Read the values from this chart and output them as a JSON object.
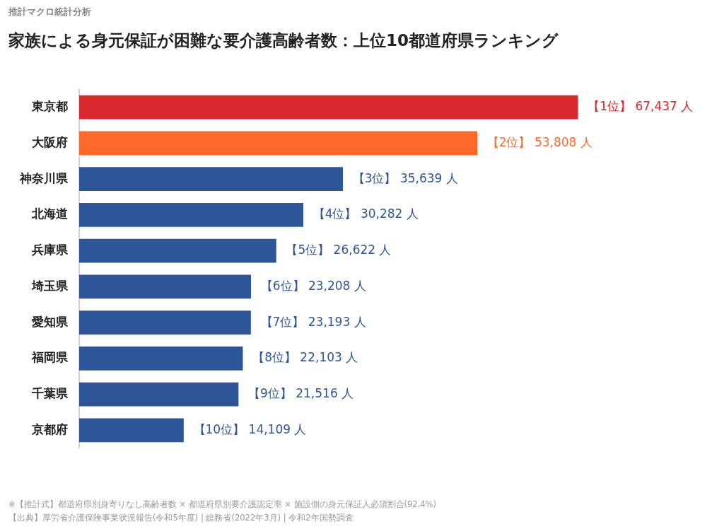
{
  "chart_data": {
    "type": "bar",
    "orientation": "horizontal",
    "subtitle": "推計マクロ統計分析",
    "title": "家族による身元保証が困難な要介護高齢者数：上位10都道府県ランキング",
    "categories": [
      "東京都",
      "大阪府",
      "神奈川県",
      "北海道",
      "兵庫県",
      "埼玉県",
      "愛知県",
      "福岡県",
      "千葉県",
      "京都府"
    ],
    "values": [
      67437,
      53808,
      35639,
      30282,
      26622,
      23208,
      23193,
      22103,
      21516,
      14109
    ],
    "colors": [
      "#d9292c",
      "#ff6a2b",
      "#2e5597",
      "#2e5597",
      "#2e5597",
      "#2e5597",
      "#2e5597",
      "#2e5597",
      "#2e5597",
      "#2e5597"
    ],
    "value_labels": [
      "【1位】 67,437 人",
      "【2位】 53,808 人",
      "【3位】 35,639 人",
      "【4位】 30,282 人",
      "【5位】 26,622 人",
      "【6位】 23,208 人",
      "【7位】 23,193 人",
      "【8位】 22,103 人",
      "【9位】 21,516 人",
      "【10位】 14,109 人"
    ],
    "tick_labels": "y",
    "grid": false,
    "legend": false,
    "annotations": [
      "※【推計式】都道府県別身寄りなし高齢者数 × 都道府県別要介護認定率 × 施設側の身元保証人必須割合(92.4%)",
      "【出典】厚労省介護保険事業状況報告(令和5年度) | 総務省(2022年3月) | 令和2年国勢調査"
    ]
  }
}
